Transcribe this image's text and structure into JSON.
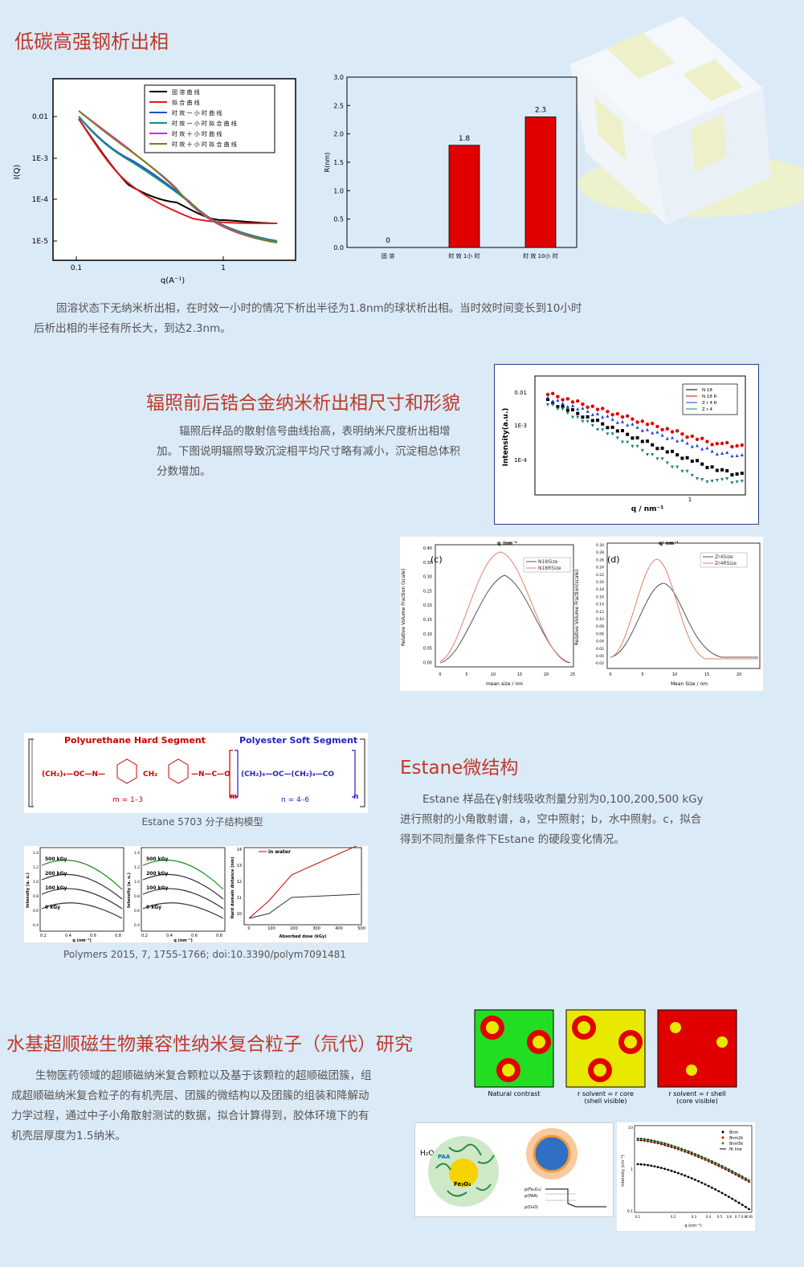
{
  "s1": {
    "title": "低碳高强钢析出相",
    "text": "固溶状态下无纳米析出相，在时效一小时的情况下析出半径为1.8nm的球状析出相。当时效时间变长到10小时后析出相的半径有所长大，到达2.3nm。",
    "saxs": {
      "ylabel": "I(Q)",
      "xlabel": "q(A⁻¹)",
      "yticks": [
        "0.01",
        "1E-3",
        "1E-4",
        "1E-5"
      ],
      "xticks": [
        "0.1",
        "1"
      ],
      "legend": [
        "固 溶 曲 线",
        "拟 合 曲 线",
        "时 效 一 小 时 曲 线",
        "时 效 一 小 时 拟 合 曲 线",
        "时 效 十 小 时 曲 线",
        "时 效 十 小 时 拟 合 曲 线"
      ],
      "colors": [
        "#000000",
        "#e41a1c",
        "#1f4fd1",
        "#1a8c8c",
        "#e020e0",
        "#7d7d1c"
      ]
    },
    "bar": {
      "ylabel": "R(nm)",
      "categories": [
        "固 溶",
        "时 效 1小 时",
        "时 效 10小 时"
      ],
      "values": [
        0,
        1.8,
        2.3
      ],
      "value_labels": [
        "0",
        "1.8",
        "2.3"
      ],
      "yticks": [
        "0.0",
        "0.5",
        "1.0",
        "1.5",
        "2.0",
        "2.5",
        "3.0"
      ],
      "color": "#e00000"
    }
  },
  "s2": {
    "title": "辐照前后锆合金纳米析出相尺寸和形貌",
    "text": "辐照后样品的散射信号曲线抬高，表明纳米尺度析出相增加。下图说明辐照导致沉淀相平均尺寸略有减小，沉淀相总体积分数增加。",
    "saxs": {
      "ylabel": "Intensity(a.u.)",
      "xlabel": "q / nm⁻¹",
      "yticks": [
        "0.01",
        "1E-3",
        "1E-4"
      ],
      "xticks": [
        "1"
      ],
      "legend": [
        "N 18",
        "N 18 R",
        "Z r 4 R",
        "Z r 4"
      ],
      "colors": [
        "#000000",
        "#e00000",
        "#1f3fd8",
        "#1a7f7f"
      ]
    },
    "c": {
      "tag": "(c)",
      "top": "q /nm⁻¹",
      "xlabel": "mean size / nm",
      "ylabel": "Relative Volume Fraction (scale)",
      "legend": [
        "N18Size",
        "N18RSize"
      ],
      "yticks": [
        "0.40",
        "0.35",
        "0.30",
        "0.25",
        "0.20",
        "0.15",
        "0.10",
        "0.05",
        "0.00"
      ],
      "xticks": [
        "0",
        "5",
        "10",
        "15",
        "20",
        "25"
      ]
    },
    "d": {
      "tag": "(d)",
      "top": "q/ nm⁻¹",
      "xlabel": "Mean Size / nm",
      "ylabel": "Relative Volume Fraction(scale)",
      "legend": [
        "Zr4Size",
        "Zr4RSize"
      ],
      "yticks": [
        "0.30",
        "0.28",
        "0.26",
        "0.24",
        "0.22",
        "0.20",
        "0.18",
        "0.16",
        "0.14",
        "0.12",
        "0.10",
        "0.08",
        "0.06",
        "0.04",
        "0.02",
        "0.00",
        "-0.02"
      ],
      "xticks": [
        "0",
        "5",
        "10",
        "15",
        "20",
        "25"
      ]
    }
  },
  "s3": {
    "title": "Estane微结构",
    "text": "Estane  样品在γ射线吸收剂量分别为0,100,200,500 kGy进行照射的小角散射谱，a，空中照射；b，水中照射。c，拟合得到不同剂量条件下Estane 的硬段变化情况。",
    "structure": {
      "hard": "Polyurethane Hard Segment",
      "soft": "Polyester Soft Segment",
      "chain_a": "(CH₂)₄—OC—N—",
      "ch2": "CH₂",
      "chain_b": "—N—C—O",
      "chain_c": "(CH₂)₄—OC—(CH₂)₄—CO",
      "m": "m = 1–3",
      "n": "n = 4–6",
      "sub_m": "m",
      "sub_n": "n"
    },
    "struct_caption": "Estane 5703 分子结构模型",
    "curves": {
      "doses": [
        "500 kGy",
        "200 kGy",
        "100 kGy",
        "0 kGy"
      ],
      "ylabel": "Intensity (a. u.)",
      "xlabel": "q (nm⁻¹)",
      "xticks": [
        "0.2",
        "0.4",
        "0.6",
        "0.8"
      ],
      "yticks": [
        "1.4",
        "1.2",
        "1.0",
        "0.8",
        "0.6",
        "0.4"
      ]
    },
    "dose_chart": {
      "ylabel": "Hard domain distance (nm)",
      "xlabel": "Absorbed dose (kGy)",
      "legend": "in water",
      "xticks": [
        "0",
        "100",
        "200",
        "300",
        "400",
        "500"
      ],
      "yticks": [
        "14",
        "13",
        "12",
        "11",
        "10"
      ]
    },
    "citation": "Polymers 2015, 7, 1755-1766; doi:10.3390/polym7091481"
  },
  "s4": {
    "title": "水基超顺磁生物兼容性纳米复合粒子（氘代）研究",
    "text": "生物医药领域的超顺磁纳米复合颗粒以及基于该颗粒的超顺磁团簇，组成超顺磁纳米复合粒子的有机壳层、团簇的微结构以及团簇的组装和降解动力学过程，通过中子小角散射测试的数据，拟合计算得到，胶体环境下的有机壳层厚度为1.5纳米。",
    "contrast": [
      {
        "label": "Natural contrast",
        "bg": "#22dd22",
        "shell": "#e00000",
        "core": "#e8e800"
      },
      {
        "label": "r solvent = r core",
        "sub": "(shell visible)",
        "bg": "#e8e800",
        "shell": "#e00000",
        "core": "#e8e800"
      },
      {
        "label": "r solvent = r shell",
        "sub": "(core visible)",
        "bg": "#e00000",
        "shell": "#e00000",
        "core": "#e8e800"
      }
    ],
    "particle": {
      "h2o": "H₂O",
      "paa": "PAA",
      "core": "Fe₃O₄"
    },
    "profile": [
      "ρ(Fe₃O₄)",
      "ρ(PAA)",
      "ρ(D₂O)"
    ],
    "sans": {
      "legend": [
        "8nm",
        "8nm2k",
        "8nm5k",
        "fit line"
      ],
      "colors": [
        "#000000",
        "#e00000",
        "#1a9a1a",
        "#000000"
      ],
      "ylabel": "Intensity (cm⁻¹)",
      "xlabel": "q (nm⁻¹)",
      "xticks": [
        "0.1",
        "0.2",
        "0.3",
        "0.4",
        "0.5",
        "0.6",
        "0.7",
        "0.8",
        "0.9",
        "1"
      ],
      "yticks": [
        "10",
        "1",
        "0.1"
      ]
    }
  }
}
